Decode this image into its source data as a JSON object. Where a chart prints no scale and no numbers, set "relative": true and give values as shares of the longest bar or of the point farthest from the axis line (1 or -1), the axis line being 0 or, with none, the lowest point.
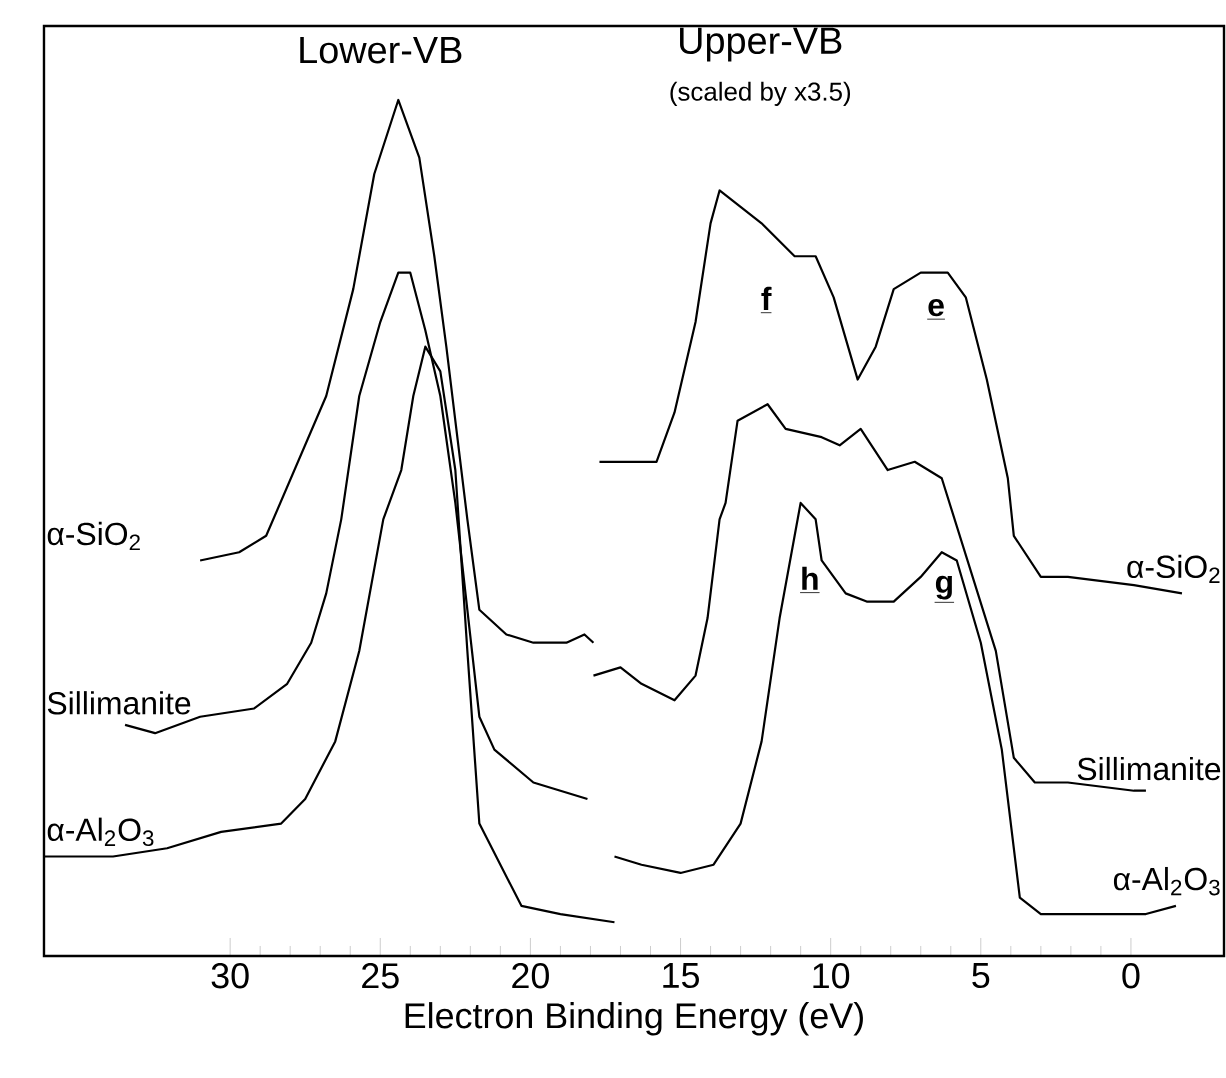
{
  "chart_data": {
    "type": "line",
    "relative": true,
    "xlabel": "Electron Binding Energy (eV)",
    "xlim": [
      36.2,
      -3.1
    ],
    "xticks": [
      30,
      25,
      20,
      15,
      10,
      5,
      0
    ],
    "marker": "none",
    "line_style": "solid",
    "annotations": [
      "Lower-VB",
      "Upper-VB",
      "(scaled by x3.5)",
      "f",
      "e",
      "h",
      "g"
    ],
    "series": [
      {
        "name": "α-SiO$_{2}$",
        "color": "#000000",
        "x": [
          31.0,
          29.7,
          28.8,
          26.8,
          25.9,
          25.2,
          24.4,
          23.7,
          23.2,
          22.8,
          22.3,
          22.1,
          21.7,
          20.8,
          19.9,
          18.8,
          18.2,
          17.9,
          null,
          17.7,
          15.8,
          15.2,
          14.5,
          14.0,
          13.7,
          13.0,
          12.3,
          11.2,
          10.5,
          9.9,
          9.1,
          8.5,
          7.9,
          7.0,
          6.1,
          5.5,
          4.8,
          4.1,
          3.9,
          3.0,
          2.1,
          -0.1,
          -1.7
        ],
        "values": [
          0.44,
          0.45,
          0.47,
          0.64,
          0.77,
          0.91,
          1.0,
          0.93,
          0.81,
          0.7,
          0.55,
          0.49,
          0.38,
          0.35,
          0.34,
          0.34,
          0.35,
          0.34,
          null,
          0.56,
          0.56,
          0.62,
          0.73,
          0.85,
          0.89,
          0.87,
          0.85,
          0.81,
          0.81,
          0.76,
          0.66,
          0.7,
          0.77,
          0.79,
          0.79,
          0.76,
          0.66,
          0.54,
          0.47,
          0.42,
          0.42,
          0.41,
          0.4
        ]
      },
      {
        "name": "Sillimanite",
        "color": "#000000",
        "x": [
          33.5,
          32.5,
          31.0,
          29.2,
          28.1,
          27.3,
          26.8,
          26.3,
          25.7,
          25.0,
          24.4,
          24.0,
          23.5,
          23.0,
          22.5,
          21.7,
          21.2,
          19.9,
          19.0,
          18.1,
          null,
          17.9,
          17.0,
          16.3,
          15.2,
          14.5,
          14.1,
          13.7,
          13.5,
          13.1,
          12.1,
          11.5,
          10.3,
          9.7,
          9.0,
          8.1,
          7.2,
          6.3,
          5.7,
          4.5,
          3.9,
          3.2,
          2.1,
          -0.1,
          -0.5
        ],
        "values": [
          0.24,
          0.23,
          0.25,
          0.26,
          0.29,
          0.34,
          0.4,
          0.49,
          0.64,
          0.73,
          0.79,
          0.79,
          0.72,
          0.64,
          0.51,
          0.25,
          0.21,
          0.17,
          0.16,
          0.15,
          null,
          0.3,
          0.31,
          0.29,
          0.27,
          0.3,
          0.37,
          0.49,
          0.51,
          0.61,
          0.63,
          0.6,
          0.59,
          0.58,
          0.6,
          0.55,
          0.56,
          0.54,
          0.47,
          0.33,
          0.2,
          0.17,
          0.17,
          0.16,
          0.16
        ]
      },
      {
        "name": "α-Al$_{2}$O$_{3}$",
        "color": "#000000",
        "x": [
          36.2,
          33.9,
          32.1,
          30.3,
          28.3,
          27.5,
          26.5,
          25.7,
          24.9,
          24.3,
          23.9,
          23.5,
          23.0,
          22.5,
          22.1,
          21.7,
          21.0,
          20.3,
          19.0,
          17.2,
          null,
          17.2,
          16.3,
          15.0,
          13.9,
          13.0,
          12.3,
          11.7,
          11.2,
          11.0,
          10.5,
          10.3,
          9.5,
          8.8,
          7.9,
          7.0,
          6.3,
          5.8,
          5.0,
          4.3,
          3.7,
          3.0,
          1.0,
          -0.5,
          -1.5
        ],
        "values": [
          0.08,
          0.08,
          0.09,
          0.11,
          0.12,
          0.15,
          0.22,
          0.33,
          0.49,
          0.55,
          0.64,
          0.7,
          0.67,
          0.55,
          0.33,
          0.12,
          0.07,
          0.02,
          0.01,
          0.0,
          null,
          0.08,
          0.07,
          0.06,
          0.07,
          0.12,
          0.22,
          0.37,
          0.47,
          0.51,
          0.49,
          0.44,
          0.4,
          0.39,
          0.39,
          0.42,
          0.45,
          0.44,
          0.34,
          0.21,
          0.03,
          0.01,
          0.01,
          0.01,
          0.02
        ]
      }
    ]
  }
}
